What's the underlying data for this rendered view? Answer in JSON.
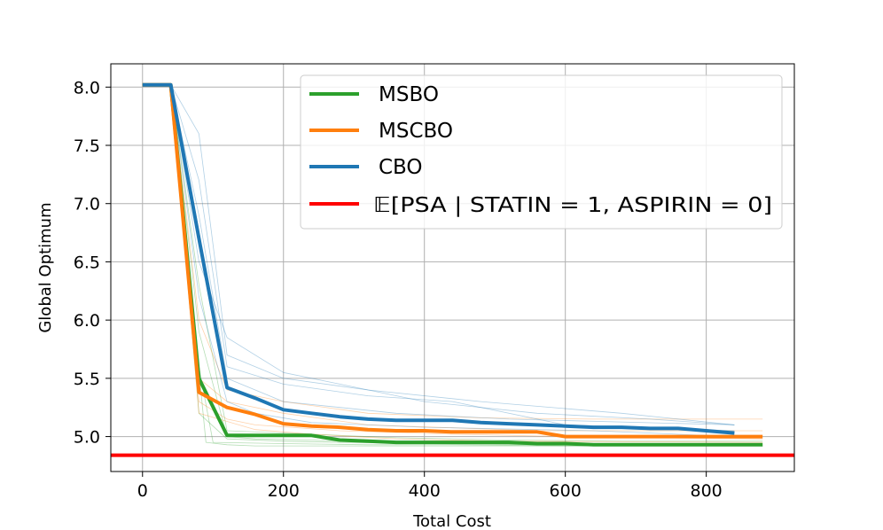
{
  "chart_data": {
    "type": "line",
    "xlabel": "Total Cost",
    "ylabel": "Global Optimum",
    "xlim": [
      -45,
      925
    ],
    "ylim": [
      4.7,
      8.2
    ],
    "xticks": [
      0,
      200,
      400,
      600,
      800
    ],
    "yticks": [
      5.0,
      5.5,
      6.0,
      6.5,
      7.0,
      7.5,
      8.0
    ],
    "xtick_labels": [
      "0",
      "200",
      "400",
      "600",
      "800"
    ],
    "ytick_labels": [
      "5.0",
      "5.5",
      "6.0",
      "6.5",
      "7.0",
      "7.5",
      "8.0"
    ],
    "grid": true,
    "legend_position": "top-right",
    "legend_math_bb": "𝔼",
    "series": [
      {
        "name": "MSBO",
        "color": "#2ca02c",
        "x": [
          0,
          40,
          80,
          120,
          160,
          200,
          240,
          280,
          320,
          360,
          400,
          440,
          480,
          520,
          560,
          600,
          640,
          680,
          720,
          760,
          800,
          840,
          880
        ],
        "y": [
          8.02,
          8.02,
          5.5,
          5.01,
          5.01,
          5.01,
          5.01,
          4.97,
          4.96,
          4.95,
          4.95,
          4.95,
          4.95,
          4.95,
          4.94,
          4.94,
          4.93,
          4.93,
          4.93,
          4.93,
          4.93,
          4.93,
          4.93
        ]
      },
      {
        "name": "MSCBO",
        "color": "#ff7f0e",
        "x": [
          0,
          40,
          80,
          120,
          160,
          200,
          240,
          280,
          320,
          360,
          400,
          440,
          480,
          520,
          560,
          600,
          640,
          680,
          720,
          760,
          800,
          840,
          880
        ],
        "y": [
          8.02,
          8.02,
          5.38,
          5.25,
          5.19,
          5.11,
          5.09,
          5.08,
          5.06,
          5.05,
          5.05,
          5.04,
          5.04,
          5.04,
          5.04,
          5.0,
          5.0,
          5.0,
          5.0,
          5.0,
          5.0,
          5.0,
          5.0
        ]
      },
      {
        "name": "CBO",
        "color": "#1f77b4",
        "x": [
          0,
          40,
          80,
          120,
          160,
          200,
          240,
          280,
          320,
          360,
          400,
          440,
          480,
          520,
          560,
          600,
          640,
          680,
          720,
          760,
          800,
          840
        ],
        "y": [
          8.02,
          8.02,
          6.7,
          5.42,
          5.33,
          5.23,
          5.2,
          5.17,
          5.15,
          5.14,
          5.14,
          5.14,
          5.12,
          5.11,
          5.1,
          5.09,
          5.08,
          5.08,
          5.07,
          5.07,
          5.05,
          5.03
        ]
      },
      {
        "name": "𝔼[PSA | STATIN = 1, ASPIRIN = 0]",
        "legend_prefix": "[PSA | STATIN",
        "legend_mid": "1, ASPIRIN",
        "legend_suffix": "0]",
        "color": "#ff0000",
        "type": "hline",
        "y": 4.84
      }
    ],
    "faint_runs": [
      {
        "color": "#2ca02c",
        "x": [
          0,
          40,
          80,
          120,
          160,
          240,
          320,
          480,
          640,
          880
        ],
        "y": [
          8.02,
          8.02,
          5.9,
          5.0,
          4.98,
          4.97,
          4.95,
          4.94,
          4.93,
          4.93
        ]
      },
      {
        "color": "#2ca02c",
        "x": [
          0,
          40,
          80,
          120,
          200,
          280,
          400,
          560,
          720,
          880
        ],
        "y": [
          8.02,
          8.02,
          5.2,
          4.98,
          4.96,
          4.95,
          4.94,
          4.93,
          4.92,
          4.92
        ]
      },
      {
        "color": "#2ca02c",
        "x": [
          0,
          40,
          80,
          100,
          200,
          320,
          440,
          600,
          880
        ],
        "y": [
          8.02,
          8.02,
          5.6,
          4.95,
          4.94,
          4.93,
          4.93,
          4.92,
          4.92
        ]
      },
      {
        "color": "#2ca02c",
        "x": [
          0,
          40,
          80,
          120,
          240,
          360,
          520,
          680,
          880
        ],
        "y": [
          8.02,
          8.02,
          6.3,
          5.05,
          5.02,
          4.99,
          4.97,
          4.96,
          4.96
        ]
      },
      {
        "color": "#2ca02c",
        "x": [
          0,
          40,
          90,
          120,
          160,
          280,
          400,
          880
        ],
        "y": [
          8.02,
          8.02,
          4.95,
          4.93,
          4.92,
          4.92,
          4.92,
          4.92
        ]
      },
      {
        "color": "#ff7f0e",
        "x": [
          0,
          40,
          80,
          120,
          200,
          320,
          480,
          640,
          880
        ],
        "y": [
          8.02,
          8.02,
          6.0,
          5.4,
          5.3,
          5.2,
          5.16,
          5.15,
          5.15
        ]
      },
      {
        "color": "#ff7f0e",
        "x": [
          0,
          40,
          80,
          120,
          160,
          280,
          440,
          600,
          880
        ],
        "y": [
          8.02,
          8.02,
          5.3,
          5.15,
          5.1,
          5.05,
          5.02,
          5.0,
          4.98
        ]
      },
      {
        "color": "#ff7f0e",
        "x": [
          0,
          40,
          80,
          160,
          240,
          360,
          520,
          880
        ],
        "y": [
          8.02,
          8.02,
          5.2,
          5.06,
          5.02,
          4.98,
          4.96,
          4.95
        ]
      },
      {
        "color": "#ff7f0e",
        "x": [
          0,
          40,
          80,
          120,
          200,
          320,
          560,
          880
        ],
        "y": [
          8.02,
          8.02,
          5.5,
          5.3,
          5.2,
          5.1,
          5.05,
          5.05
        ]
      },
      {
        "color": "#1f77b4",
        "x": [
          0,
          40,
          80,
          120,
          200,
          280,
          400,
          560,
          720,
          840
        ],
        "y": [
          8.02,
          8.02,
          6.5,
          5.85,
          5.55,
          5.45,
          5.3,
          5.2,
          5.15,
          5.1
        ]
      },
      {
        "color": "#1f77b4",
        "x": [
          0,
          40,
          80,
          120,
          200,
          320,
          440,
          600,
          840
        ],
        "y": [
          8.02,
          8.02,
          7.2,
          5.6,
          5.45,
          5.35,
          5.3,
          5.1,
          5.05
        ]
      },
      {
        "color": "#1f77b4",
        "x": [
          0,
          40,
          80,
          120,
          160,
          240,
          400,
          640,
          840
        ],
        "y": [
          8.02,
          8.02,
          6.2,
          5.3,
          5.2,
          5.12,
          5.08,
          5.05,
          5.0
        ]
      },
      {
        "color": "#1f77b4",
        "x": [
          0,
          40,
          80,
          120,
          200,
          280,
          360,
          520,
          840
        ],
        "y": [
          8.02,
          8.02,
          6.9,
          5.5,
          5.3,
          5.25,
          5.2,
          5.15,
          5.1
        ]
      },
      {
        "color": "#1f77b4",
        "x": [
          0,
          40,
          80,
          120,
          200,
          320,
          480,
          680,
          840
        ],
        "y": [
          8.02,
          8.02,
          7.6,
          5.7,
          5.5,
          5.4,
          5.3,
          5.2,
          5.1
        ]
      }
    ]
  }
}
